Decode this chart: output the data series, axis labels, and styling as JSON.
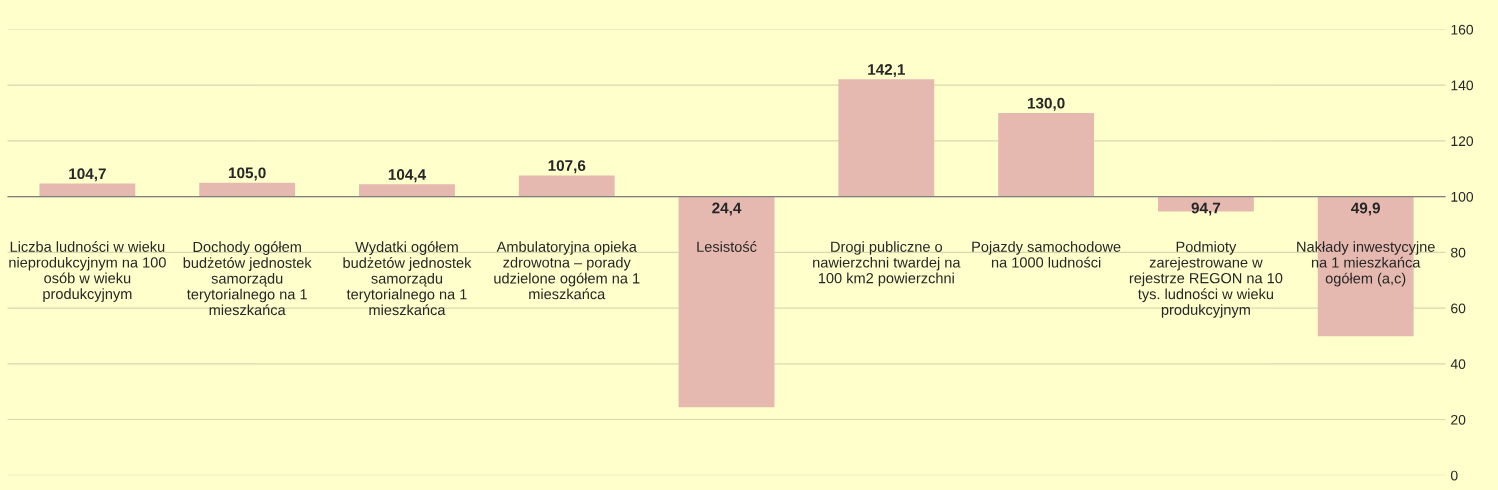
{
  "chart_data": {
    "type": "bar",
    "categories": [
      "Liczba ludności w wieku\nnieprodukcyjnym na 100\nosób w wieku\nprodukcyjnym",
      "Dochody ogółem\nbudżetów jednostek\nsamorządu\nterytorialnego na 1\nmieszkańca",
      "Wydatki ogółem\nbudżetów jednostek\nsamorządu\nterytorialnego na 1\nmieszkańca",
      "Ambulatoryjna opieka\nzdrowotna – porady\nudzielone ogółem na 1\nmieszkańca",
      "Lesistość",
      "Drogi publiczne o\nnawierzchni twardej na\n100 km2 powierzchni",
      "Pojazdy samochodowe\nna 1000 ludności",
      "Podmioty\nzarejestrowane w\nrejestrze REGON na 10\ntys. ludności w wieku\nprodukcyjnym",
      "Nakłady inwestycyjne\nna 1 mieszkańca\nogółem (a,c)"
    ],
    "base": [
      100,
      100,
      100,
      100,
      100,
      100,
      100,
      100,
      100
    ],
    "values": [
      4.7,
      5.0,
      4.4,
      7.6,
      -75.6,
      42.1,
      30.0,
      -5.3,
      -50.1
    ],
    "value_labels": [
      "104,7",
      "105,0",
      "104,4",
      "107,6",
      "24,4",
      "142,1",
      "130,0",
      "94,7",
      "49,9"
    ],
    "color": "#e6b9b0",
    "ylim": [
      0,
      160
    ],
    "yticks": [
      0,
      20,
      40,
      60,
      80,
      100,
      120,
      140,
      160
    ],
    "grid": "y",
    "ref_lines": [
      {
        "axis": "y",
        "value": 100,
        "color": "#808080"
      }
    ]
  }
}
